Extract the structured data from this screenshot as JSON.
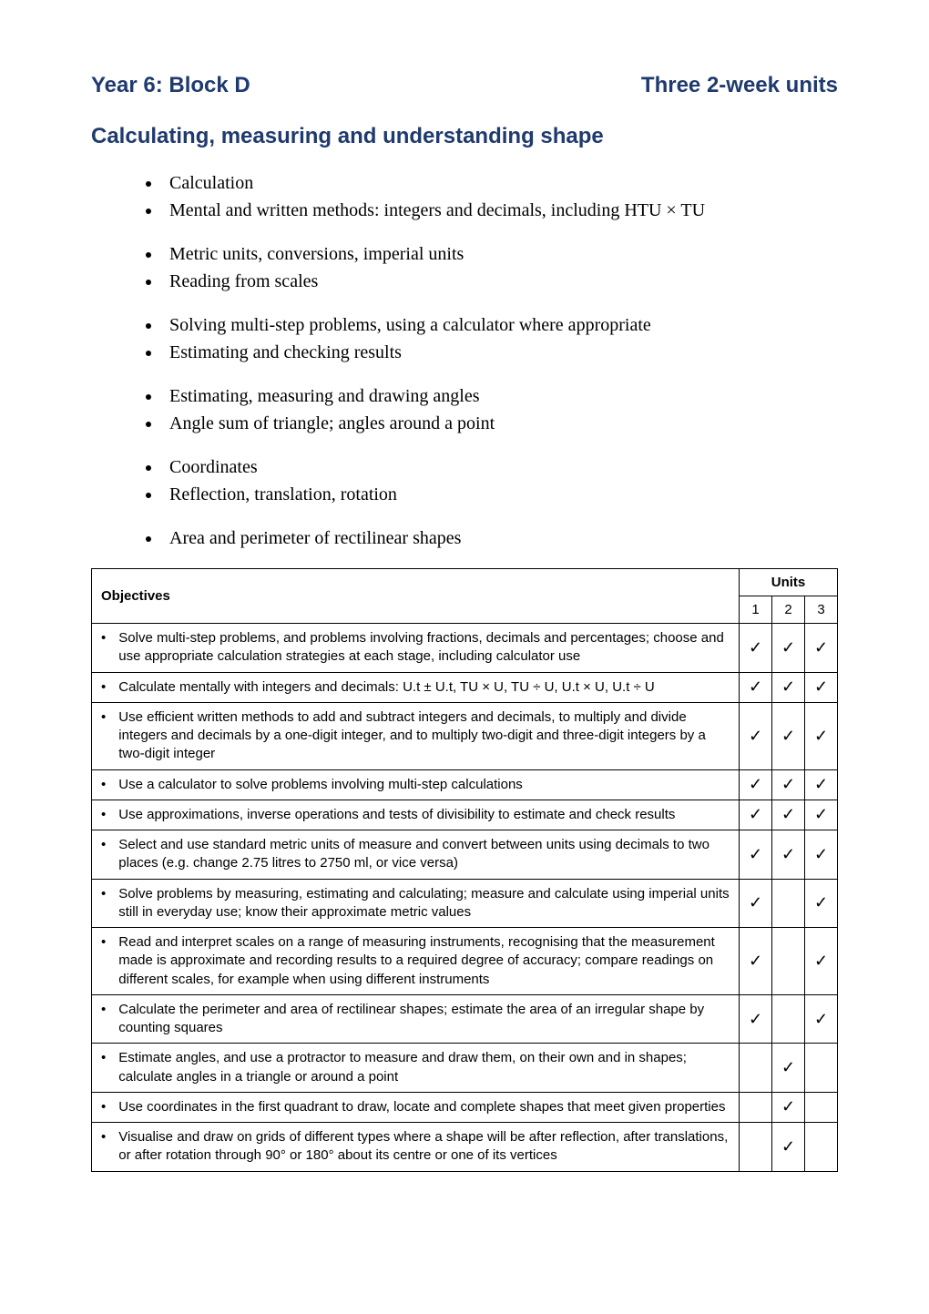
{
  "header": {
    "left": "Year 6: Block D",
    "right": "Three 2-week units"
  },
  "subheading": "Calculating, measuring and understanding shape",
  "bullet_groups": [
    [
      "Calculation",
      "Mental and written methods: integers and decimals, including HTU × TU"
    ],
    [
      "Metric units, conversions, imperial units",
      "Reading from scales"
    ],
    [
      "Solving multi-step problems, using a calculator where appropriate",
      "Estimating and checking results"
    ],
    [
      "Estimating, measuring and drawing angles",
      "Angle sum of triangle; angles around a point"
    ],
    [
      "Coordinates",
      "Reflection, translation, rotation"
    ],
    [
      "Area and perimeter of rectilinear shapes"
    ]
  ],
  "table": {
    "objectives_label": "Objectives",
    "units_label": "Units",
    "unit_cols": [
      "1",
      "2",
      "3"
    ],
    "tick_char": "✓",
    "rows": [
      {
        "text": "Solve multi-step problems, and problems involving fractions, decimals and percentages; choose and use appropriate calculation strategies at each stage, including calculator use",
        "ticks": [
          true,
          true,
          true
        ]
      },
      {
        "text": "Calculate mentally with integers and decimals: U.t ± U.t, TU × U, TU ÷ U, U.t × U, U.t ÷ U",
        "ticks": [
          true,
          true,
          true
        ]
      },
      {
        "text": "Use efficient written methods to add and subtract integers and decimals, to multiply and divide integers and decimals by a one-digit integer, and to multiply two-digit and three-digit integers by a two-digit integer",
        "ticks": [
          true,
          true,
          true
        ]
      },
      {
        "text": "Use a calculator to solve problems involving multi-step calculations",
        "ticks": [
          true,
          true,
          true
        ]
      },
      {
        "text": "Use approximations, inverse operations and tests of divisibility to estimate and check results",
        "ticks": [
          true,
          true,
          true
        ]
      },
      {
        "text": "Select and use standard metric units of measure and convert between units using decimals to two places (e.g. change 2.75 litres to 2750 ml, or vice versa)",
        "ticks": [
          true,
          true,
          true
        ]
      },
      {
        "text": "Solve problems by measuring, estimating and calculating; measure and calculate using imperial units still in everyday use; know their approximate metric values",
        "ticks": [
          true,
          false,
          true
        ]
      },
      {
        "text": "Read and interpret scales on a range of measuring instruments, recognising that the measurement made is approximate and recording results to a required degree of accuracy; compare readings on different scales, for example when using different instruments",
        "ticks": [
          true,
          false,
          true
        ]
      },
      {
        "text": "Calculate the perimeter and area of rectilinear shapes; estimate the area of an irregular shape by counting squares",
        "ticks": [
          true,
          false,
          true
        ]
      },
      {
        "text": "Estimate angles, and use a protractor to measure and draw them, on their own and in shapes; calculate angles in a triangle or around a point",
        "ticks": [
          false,
          true,
          false
        ]
      },
      {
        "text": "Use coordinates in the first quadrant to draw, locate and complete shapes that meet given properties",
        "ticks": [
          false,
          true,
          false
        ]
      },
      {
        "text": "Visualise and draw on grids of different types where a shape will be after reflection, after translations, or after rotation through 90° or 180° about its centre or one of its vertices",
        "ticks": [
          false,
          true,
          false
        ]
      }
    ]
  },
  "colors": {
    "heading": "#1f3a6e",
    "text": "#000000",
    "border": "#000000",
    "background": "#ffffff"
  },
  "fonts": {
    "heading_family": "Arial, sans-serif",
    "body_family": "Times New Roman, serif",
    "table_family": "Arial, sans-serif",
    "heading_size_pt": 18,
    "bullet_size_pt": 15,
    "table_size_pt": 11
  }
}
